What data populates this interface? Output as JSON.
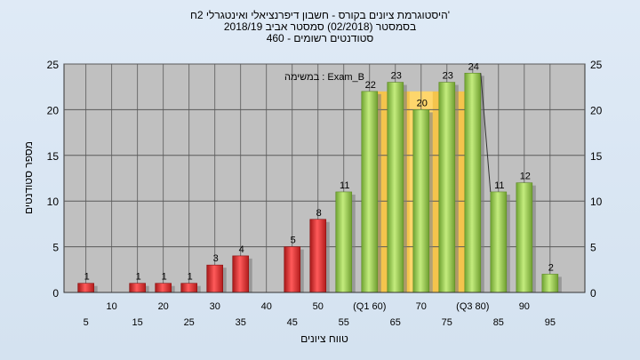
{
  "title_lines": [
    "היסטוגרמת ציונים בקורס - חשבון דיפרנציאלי ואינטגרלי 2ח'",
    "בסמסטר  (02/2018)  סמסטר אביב 2018/19",
    "סטודנטים רשומים - 460"
  ],
  "chart_data": {
    "type": "bar",
    "title": "היסטוגרמת ציונים בקורס - חשבון דיפרנציאלי ואינטגרלי 2ח'",
    "xlabel": "טווח ציונים",
    "ylabel": "מספר סטודנטים",
    "ylim": [
      0,
      25
    ],
    "yticks": [
      0,
      5,
      10,
      15,
      20,
      25
    ],
    "annotation": "במשימה : Exam_B",
    "x": [
      5,
      10,
      15,
      20,
      25,
      30,
      35,
      40,
      45,
      50,
      55,
      60,
      65,
      70,
      75,
      80,
      85,
      90,
      95
    ],
    "values": [
      1,
      0,
      1,
      1,
      1,
      3,
      4,
      0,
      5,
      8,
      11,
      22,
      23,
      20,
      23,
      24,
      11,
      12,
      2
    ],
    "x_tick_labels": [
      "5",
      "10",
      "15",
      "20",
      "25",
      "30",
      "35",
      "40",
      "45",
      "50",
      "55",
      "(Q1 60)",
      "65",
      "70",
      "75",
      "(Q3 80)",
      "85",
      "90",
      "95"
    ],
    "quartile_band": {
      "from": 60,
      "to": 80,
      "median": 70
    },
    "colors": {
      "fail": "#e03030",
      "pass": "#8cc84a",
      "band": "#f7c447",
      "plot_bg": "#c0c0c0",
      "grid": "#5a5a5a"
    },
    "grid": true
  }
}
